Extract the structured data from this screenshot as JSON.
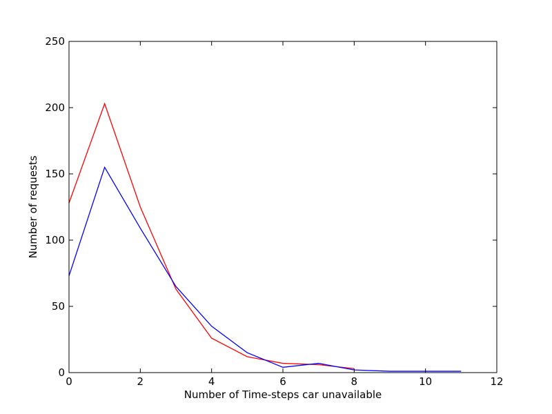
{
  "chart_data": {
    "type": "line",
    "title": "",
    "xlabel": "Number of Time-steps car unavailable",
    "ylabel": "Number of requests",
    "xlim": [
      0,
      12
    ],
    "ylim": [
      0,
      250
    ],
    "xticks": [
      "0",
      "2",
      "4",
      "6",
      "8",
      "10",
      "12"
    ],
    "yticks": [
      "0",
      "50",
      "100",
      "150",
      "200",
      "250"
    ],
    "grid": false,
    "legend": "none",
    "series": [
      {
        "color": "#ff0000",
        "x": [
          0,
          1,
          2,
          3,
          4,
          5,
          6,
          7,
          8
        ],
        "y": [
          128,
          203,
          125,
          63,
          26,
          12,
          7,
          6,
          3
        ]
      },
      {
        "color": "#0000ff",
        "x": [
          0,
          1,
          2,
          3,
          4,
          5,
          6,
          7,
          8,
          9,
          10,
          11
        ],
        "y": [
          73,
          155,
          109,
          65,
          35,
          15,
          4,
          7,
          2,
          1,
          1,
          1
        ]
      }
    ]
  }
}
